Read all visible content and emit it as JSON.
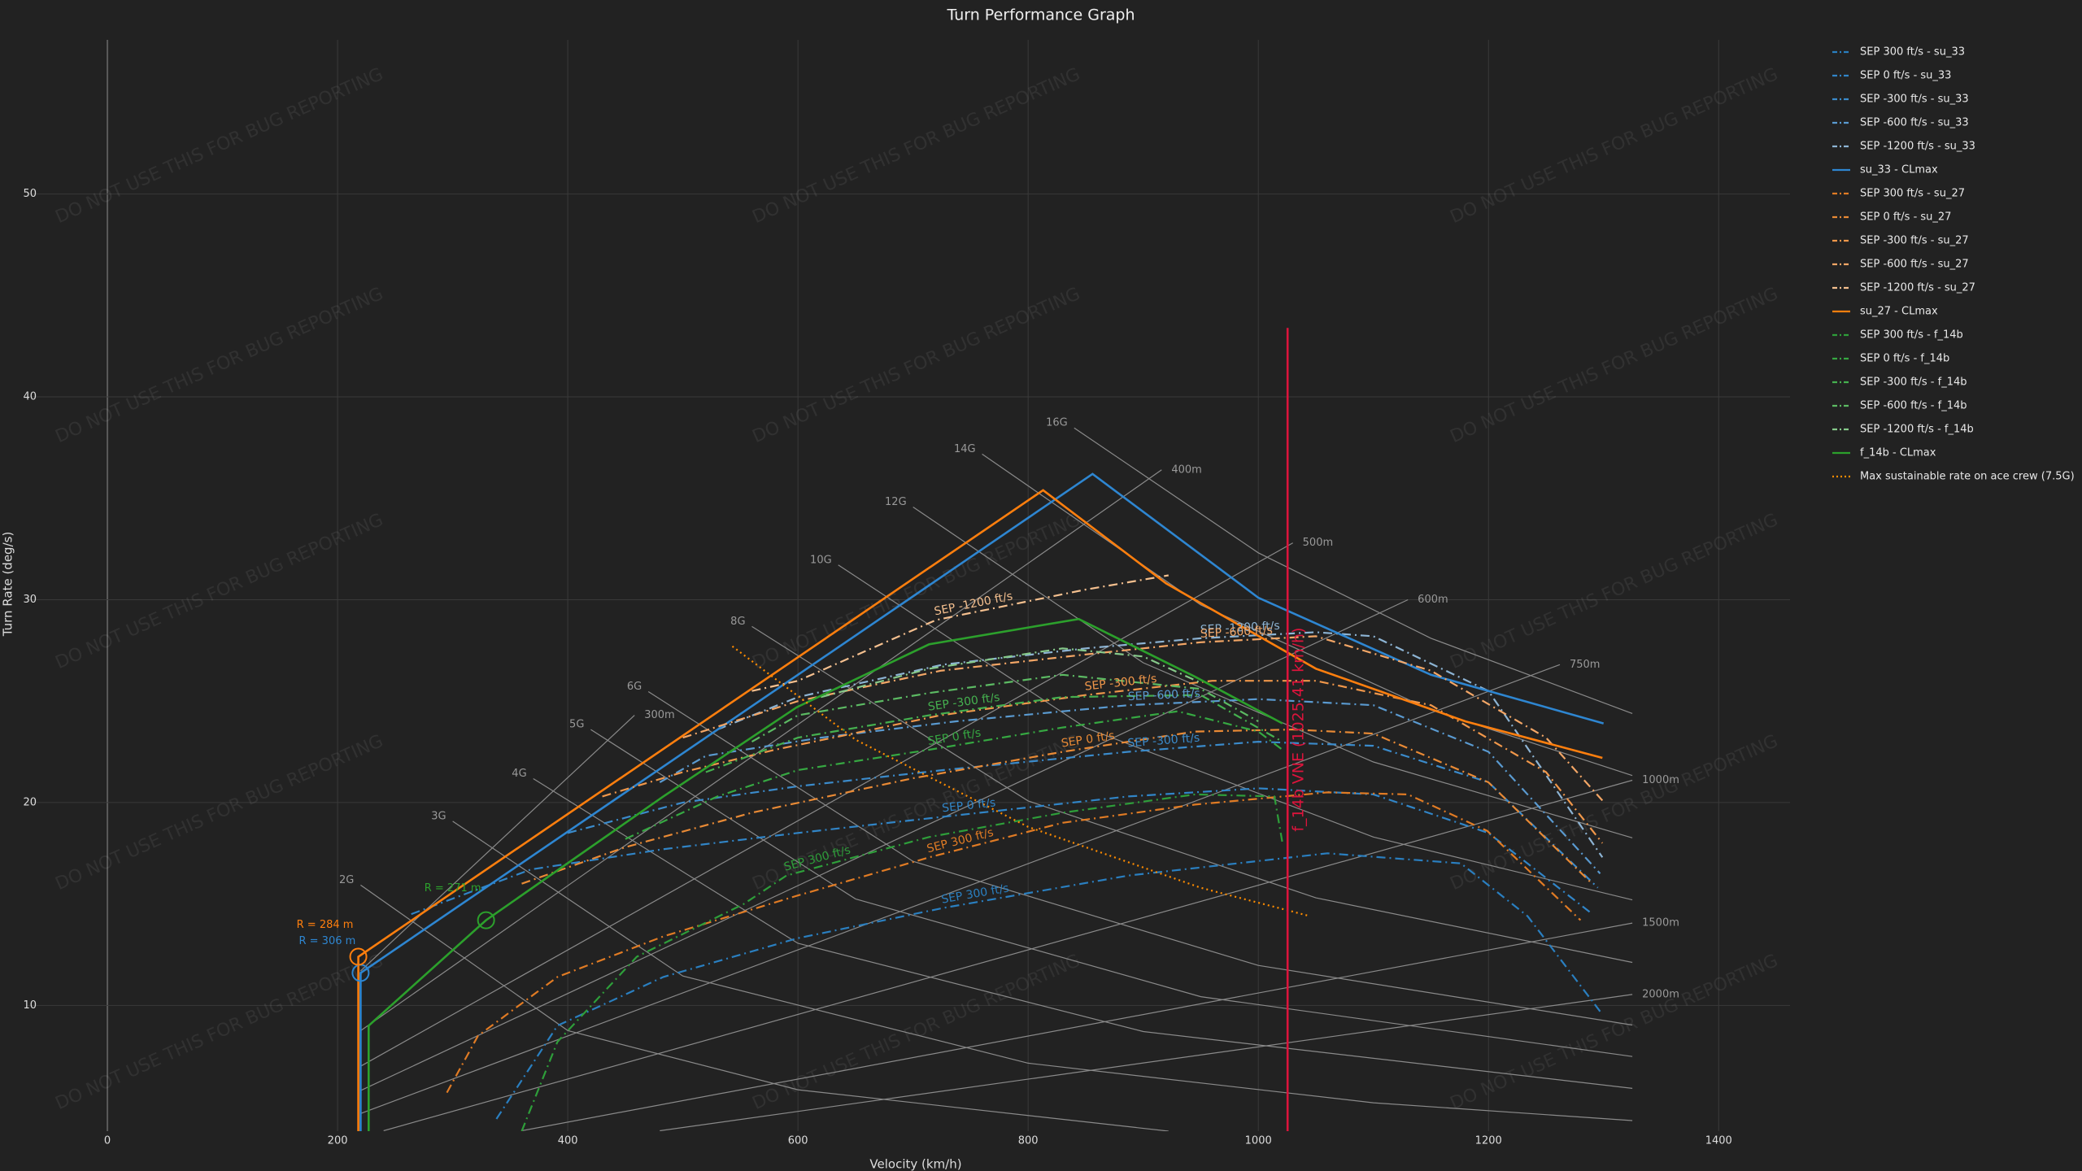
{
  "chart_data": {
    "type": "line",
    "title": "Turn Performance Graph",
    "x_label": "Velocity (km/h)",
    "y_label": "Turn Rate (deg/s)",
    "watermark": "DO NOT USE THIS FOR BUG REPORTING",
    "xlim": [
      -70,
      1462
    ],
    "ylim": [
      3.8,
      57.6
    ],
    "xticks": [
      0,
      200,
      400,
      600,
      800,
      1000,
      1200,
      1400
    ],
    "yticks": [
      10,
      20,
      30,
      40,
      50
    ],
    "grid": true,
    "legend": "right",
    "series": [
      {
        "name": "SEP 300 ft/s - su_33",
        "color": "#2a7fc0",
        "dash": "dashdot",
        "label": "SEP 300 ft/s",
        "x": [
          338,
          391,
          483,
          599,
          726,
          887,
          1060,
          1176,
          1234,
          1297
        ],
        "values": [
          4.4,
          9.0,
          11.4,
          13.3,
          14.8,
          16.4,
          17.5,
          17.0,
          14.4,
          9.7
        ]
      },
      {
        "name": "SEP 0 ft/s - su_33",
        "color": "#3185c7",
        "dash": "dashdot",
        "label": "SEP 0 ft/s",
        "x": [
          264,
          368,
          483,
          600,
          726,
          887,
          1000,
          1100,
          1200,
          1288
        ],
        "values": [
          14.5,
          16.7,
          17.7,
          18.5,
          19.3,
          20.3,
          20.7,
          20.4,
          18.5,
          14.6
        ]
      },
      {
        "name": "SEP -300 ft/s - su_33",
        "color": "#3b8bcb",
        "dash": "dashdot",
        "label": "SEP -300 ft/s",
        "x": [
          400,
          500,
          600,
          726,
          887,
          1000,
          1100,
          1200,
          1295
        ],
        "values": [
          18.5,
          20.0,
          20.8,
          21.6,
          22.5,
          23.0,
          22.8,
          21.0,
          15.8
        ]
      },
      {
        "name": "SEP -600 ft/s - su_33",
        "color": "#5a9ad0",
        "dash": "dashdot",
        "label": "SEP -600 ft/s",
        "x": [
          480,
          520,
          620,
          737,
          887,
          1000,
          1100,
          1200,
          1297
        ],
        "values": [
          21.0,
          22.3,
          23.2,
          24.0,
          24.8,
          25.1,
          24.8,
          22.5,
          16.5
        ]
      },
      {
        "name": "SEP -1200 ft/s - su_33",
        "color": "#8db4d4",
        "dash": "dashdot",
        "label": "SEP -1200 ft/s",
        "x": [
          530,
          600,
          726,
          850,
          950,
          1050,
          1100,
          1200,
          1299
        ],
        "values": [
          23.6,
          25.2,
          26.8,
          27.6,
          28.1,
          28.4,
          28.2,
          25.5,
          17.3
        ]
      },
      {
        "name": "su_33 - CLmax",
        "color": "#2e86d1",
        "dash": "solid",
        "min_radius": {
          "label": "R = 306 m",
          "x": 220,
          "y": 11.6
        },
        "x": [
          220,
          220,
          856,
          1000,
          1150,
          1300
        ],
        "values": [
          3.8,
          11.6,
          36.2,
          30.1,
          26.3,
          23.9
        ]
      },
      {
        "name": "SEP 300 ft/s - su_27",
        "color": "#e07b24",
        "dash": "dashdot",
        "label": "SEP 300 ft/s",
        "x": [
          295,
          322,
          391,
          483,
          599,
          714,
          830,
          945,
          1060,
          1130,
          1199,
          1280
        ],
        "values": [
          5.7,
          8.5,
          11.4,
          13.4,
          15.4,
          17.3,
          19.0,
          19.9,
          20.5,
          20.4,
          18.6,
          14.2
        ]
      },
      {
        "name": "SEP 0 ft/s - su_27",
        "color": "#e98a35",
        "dash": "dashdot",
        "label": "SEP 0 ft/s",
        "x": [
          360,
          450,
          560,
          700,
          830,
          945,
          1030,
          1100,
          1200,
          1290
        ],
        "values": [
          16.0,
          17.8,
          19.5,
          21.2,
          22.5,
          23.5,
          23.6,
          23.4,
          21.0,
          16.0
        ]
      },
      {
        "name": "SEP -300 ft/s - su_27",
        "color": "#f0974a",
        "dash": "dashdot",
        "label": "SEP -300 ft/s",
        "x": [
          430,
          500,
          580,
          724,
          850,
          960,
          1050,
          1150,
          1250,
          1299
        ],
        "values": [
          20.3,
          21.5,
          22.6,
          24.3,
          25.3,
          26.0,
          26.0,
          24.8,
          21.5,
          18.0
        ]
      },
      {
        "name": "SEP -600 ft/s - su_27",
        "color": "#f3a666",
        "dash": "dashdot",
        "label": "SEP -600 ft/s",
        "x": [
          500,
          600,
          724,
          850,
          950,
          1050,
          1150,
          1250,
          1299
        ],
        "values": [
          23.2,
          25.0,
          26.5,
          27.3,
          27.9,
          28.2,
          26.5,
          23.2,
          20.1
        ]
      },
      {
        "name": "SEP -1200 ft/s - su_27",
        "color": "#f5c08f",
        "dash": "dashdot",
        "label": "SEP -1200 ft/s",
        "x": [
          560,
          600,
          720,
          850,
          922
        ],
        "values": [
          25.5,
          26.0,
          29.0,
          30.5,
          31.2
        ]
      },
      {
        "name": "su_27 - CLmax",
        "color": "#ff7f0e",
        "dash": "solid",
        "min_radius": {
          "label": "R = 284 m",
          "x": 218,
          "y": 12.4
        },
        "x": [
          218,
          218,
          813,
          920,
          1050,
          1180,
          1299
        ],
        "values": [
          3.8,
          12.4,
          35.4,
          30.8,
          26.6,
          24.0,
          22.2
        ]
      },
      {
        "name": "SEP 300 ft/s - f_14b",
        "color": "#2e9e3a",
        "dash": "dashdot",
        "label": "SEP 300 ft/s",
        "x": [
          360,
          391,
          460,
          553,
          590,
          714,
          830,
          945,
          1014,
          1021
        ],
        "values": [
          3.8,
          8.2,
          12.4,
          15.0,
          16.4,
          18.3,
          19.5,
          20.4,
          20.3,
          18.0
        ]
      },
      {
        "name": "SEP 0 ft/s - f_14b",
        "color": "#36a842",
        "dash": "dashdot",
        "label": "SEP 0 ft/s",
        "x": [
          450,
          530,
          600,
          714,
          830,
          930,
          1000,
          1021
        ],
        "values": [
          18.2,
          20.3,
          21.6,
          22.6,
          23.7,
          24.5,
          23.5,
          22.6
        ]
      },
      {
        "name": "SEP -300 ft/s - f_14b",
        "color": "#45b04f",
        "dash": "dashdot",
        "label": "SEP -300 ft/s",
        "x": [
          520,
          600,
          714,
          830,
          950,
          1021
        ],
        "values": [
          21.5,
          23.2,
          24.3,
          25.2,
          25.3,
          23.0
        ]
      },
      {
        "name": "SEP -600 ft/s - f_14b",
        "color": "#5cba63",
        "dash": "dashdot",
        "x": [
          560,
          600,
          714,
          830,
          950,
          1000
        ],
        "values": [
          23.0,
          24.3,
          25.4,
          26.3,
          25.6,
          24.0
        ]
      },
      {
        "name": "SEP -1200 ft/s - f_14b",
        "color": "#86c98a",
        "dash": "dashdot",
        "x": [
          620,
          714,
          830,
          900,
          950
        ],
        "values": [
          25.2,
          26.6,
          27.6,
          27.2,
          25.9
        ]
      },
      {
        "name": "f_14b - CLmax",
        "color": "#2ca02c",
        "dash": "solid",
        "min_radius": {
          "label": "R = 271 m",
          "x": 329,
          "y": 14.2
        },
        "x": [
          227,
          227,
          329,
          483,
          599,
          714,
          844,
          945,
          1021
        ],
        "values": [
          3.8,
          9.0,
          14.2,
          20.3,
          24.7,
          27.8,
          29.05,
          26.2,
          23.9
        ]
      },
      {
        "name": "Max sustainable rate on ace crew (7.5G)",
        "color": "#ff8c00",
        "dash": "dot",
        "x": [
          543,
          650,
          800,
          950,
          1045
        ],
        "values": [
          27.7,
          23.1,
          18.8,
          15.8,
          14.4
        ]
      }
    ],
    "vline": {
      "label": "f_14b VNE (1025.41 km/h)",
      "color": "#dc143c",
      "x": [
        1025.41,
        1025.41
      ],
      "values": [
        3.8,
        43.4
      ]
    },
    "g_lines": [
      {
        "label": "2G",
        "x": [
          220,
          400,
          600,
          922
        ],
        "values": [
          15.93,
          8.76,
          5.84,
          3.8
        ]
      },
      {
        "label": "3G",
        "x": [
          300,
          500,
          800,
          1100,
          1325
        ],
        "values": [
          19.08,
          11.45,
          7.15,
          5.2,
          4.32
        ]
      },
      {
        "label": "4G",
        "x": [
          370,
          600,
          900,
          1325
        ],
        "values": [
          21.18,
          13.06,
          8.71,
          5.91
        ]
      },
      {
        "label": "5G",
        "x": [
          420,
          650,
          950,
          1325
        ],
        "values": [
          23.6,
          15.25,
          10.43,
          7.48
        ]
      },
      {
        "label": "6G",
        "x": [
          470,
          700,
          1000,
          1325
        ],
        "values": [
          25.47,
          17.1,
          11.97,
          9.03
        ]
      },
      {
        "label": "8G",
        "x": [
          560,
          800,
          1050,
          1325
        ],
        "values": [
          28.68,
          20.08,
          15.3,
          12.12
        ]
      },
      {
        "label": "10G",
        "x": [
          635,
          850,
          1100,
          1325
        ],
        "values": [
          31.71,
          23.69,
          18.3,
          15.2
        ]
      },
      {
        "label": "12G",
        "x": [
          700,
          900,
          1100,
          1325
        ],
        "values": [
          34.57,
          26.89,
          22.0,
          18.26
        ]
      },
      {
        "label": "14G",
        "x": [
          760,
          950,
          1150,
          1325
        ],
        "values": [
          37.18,
          29.74,
          24.57,
          21.33
        ]
      },
      {
        "label": "16G",
        "x": [
          840,
          1000,
          1150,
          1325
        ],
        "values": [
          38.47,
          32.31,
          28.1,
          24.39
        ]
      }
    ],
    "radius_lines": [
      {
        "label": "300m",
        "x": [
          220,
          458
        ],
        "values": [
          11.7,
          24.3
        ]
      },
      {
        "label": "400m",
        "x": [
          220,
          916
        ],
        "values": [
          8.75,
          36.4
        ]
      },
      {
        "label": "500m",
        "x": [
          220,
          1030
        ],
        "values": [
          7.0,
          32.8
        ]
      },
      {
        "label": "600m",
        "x": [
          220,
          1130
        ],
        "values": [
          5.8,
          30.0
        ]
      },
      {
        "label": "750m",
        "x": [
          220,
          1262
        ],
        "values": [
          4.67,
          26.8
        ]
      },
      {
        "label": "1000m",
        "x": [
          240,
          1325
        ],
        "values": [
          3.82,
          21.1
        ]
      },
      {
        "label": "1500m",
        "x": [
          360,
          1325
        ],
        "values": [
          3.82,
          14.06
        ]
      },
      {
        "label": "2000m",
        "x": [
          480,
          1325
        ],
        "values": [
          3.82,
          10.54
        ]
      }
    ]
  }
}
